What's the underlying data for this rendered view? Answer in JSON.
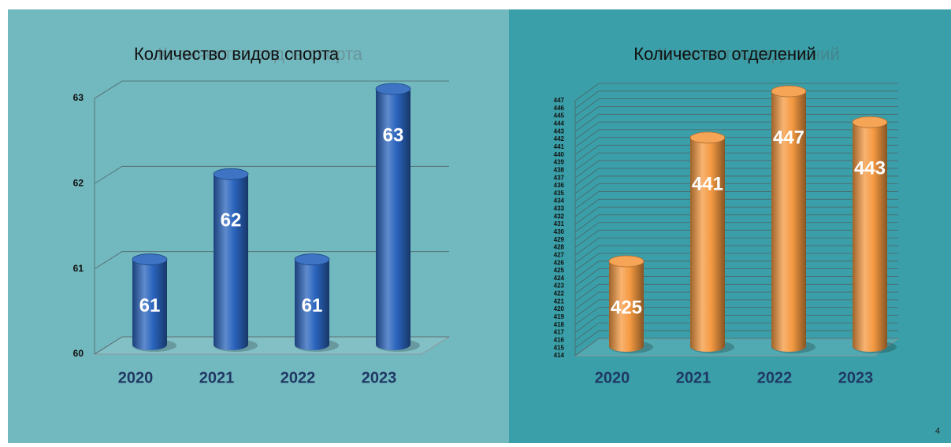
{
  "chart_data": [
    {
      "type": "bar",
      "title": "Количество видов спорта",
      "categories": [
        "2020",
        "2021",
        "2022",
        "2023"
      ],
      "values": [
        61,
        62,
        61,
        63
      ],
      "color": "#2a64bd",
      "ylim": [
        60,
        63
      ],
      "yticks": [
        60,
        61,
        62,
        63
      ],
      "grid": true
    },
    {
      "type": "bar",
      "title": "Количество отделений",
      "categories": [
        "2020",
        "2021",
        "2022",
        "2023"
      ],
      "values": [
        425,
        441,
        447,
        443
      ],
      "color": "#f59a42",
      "ylim": [
        414,
        447
      ],
      "yticks": [
        414,
        415,
        416,
        417,
        418,
        419,
        420,
        421,
        422,
        423,
        424,
        425,
        426,
        427,
        428,
        429,
        430,
        431,
        432,
        433,
        434,
        435,
        436,
        437,
        438,
        439,
        440,
        441,
        442,
        443,
        444,
        445,
        446,
        447
      ],
      "grid": true
    }
  ],
  "page_number": "4"
}
